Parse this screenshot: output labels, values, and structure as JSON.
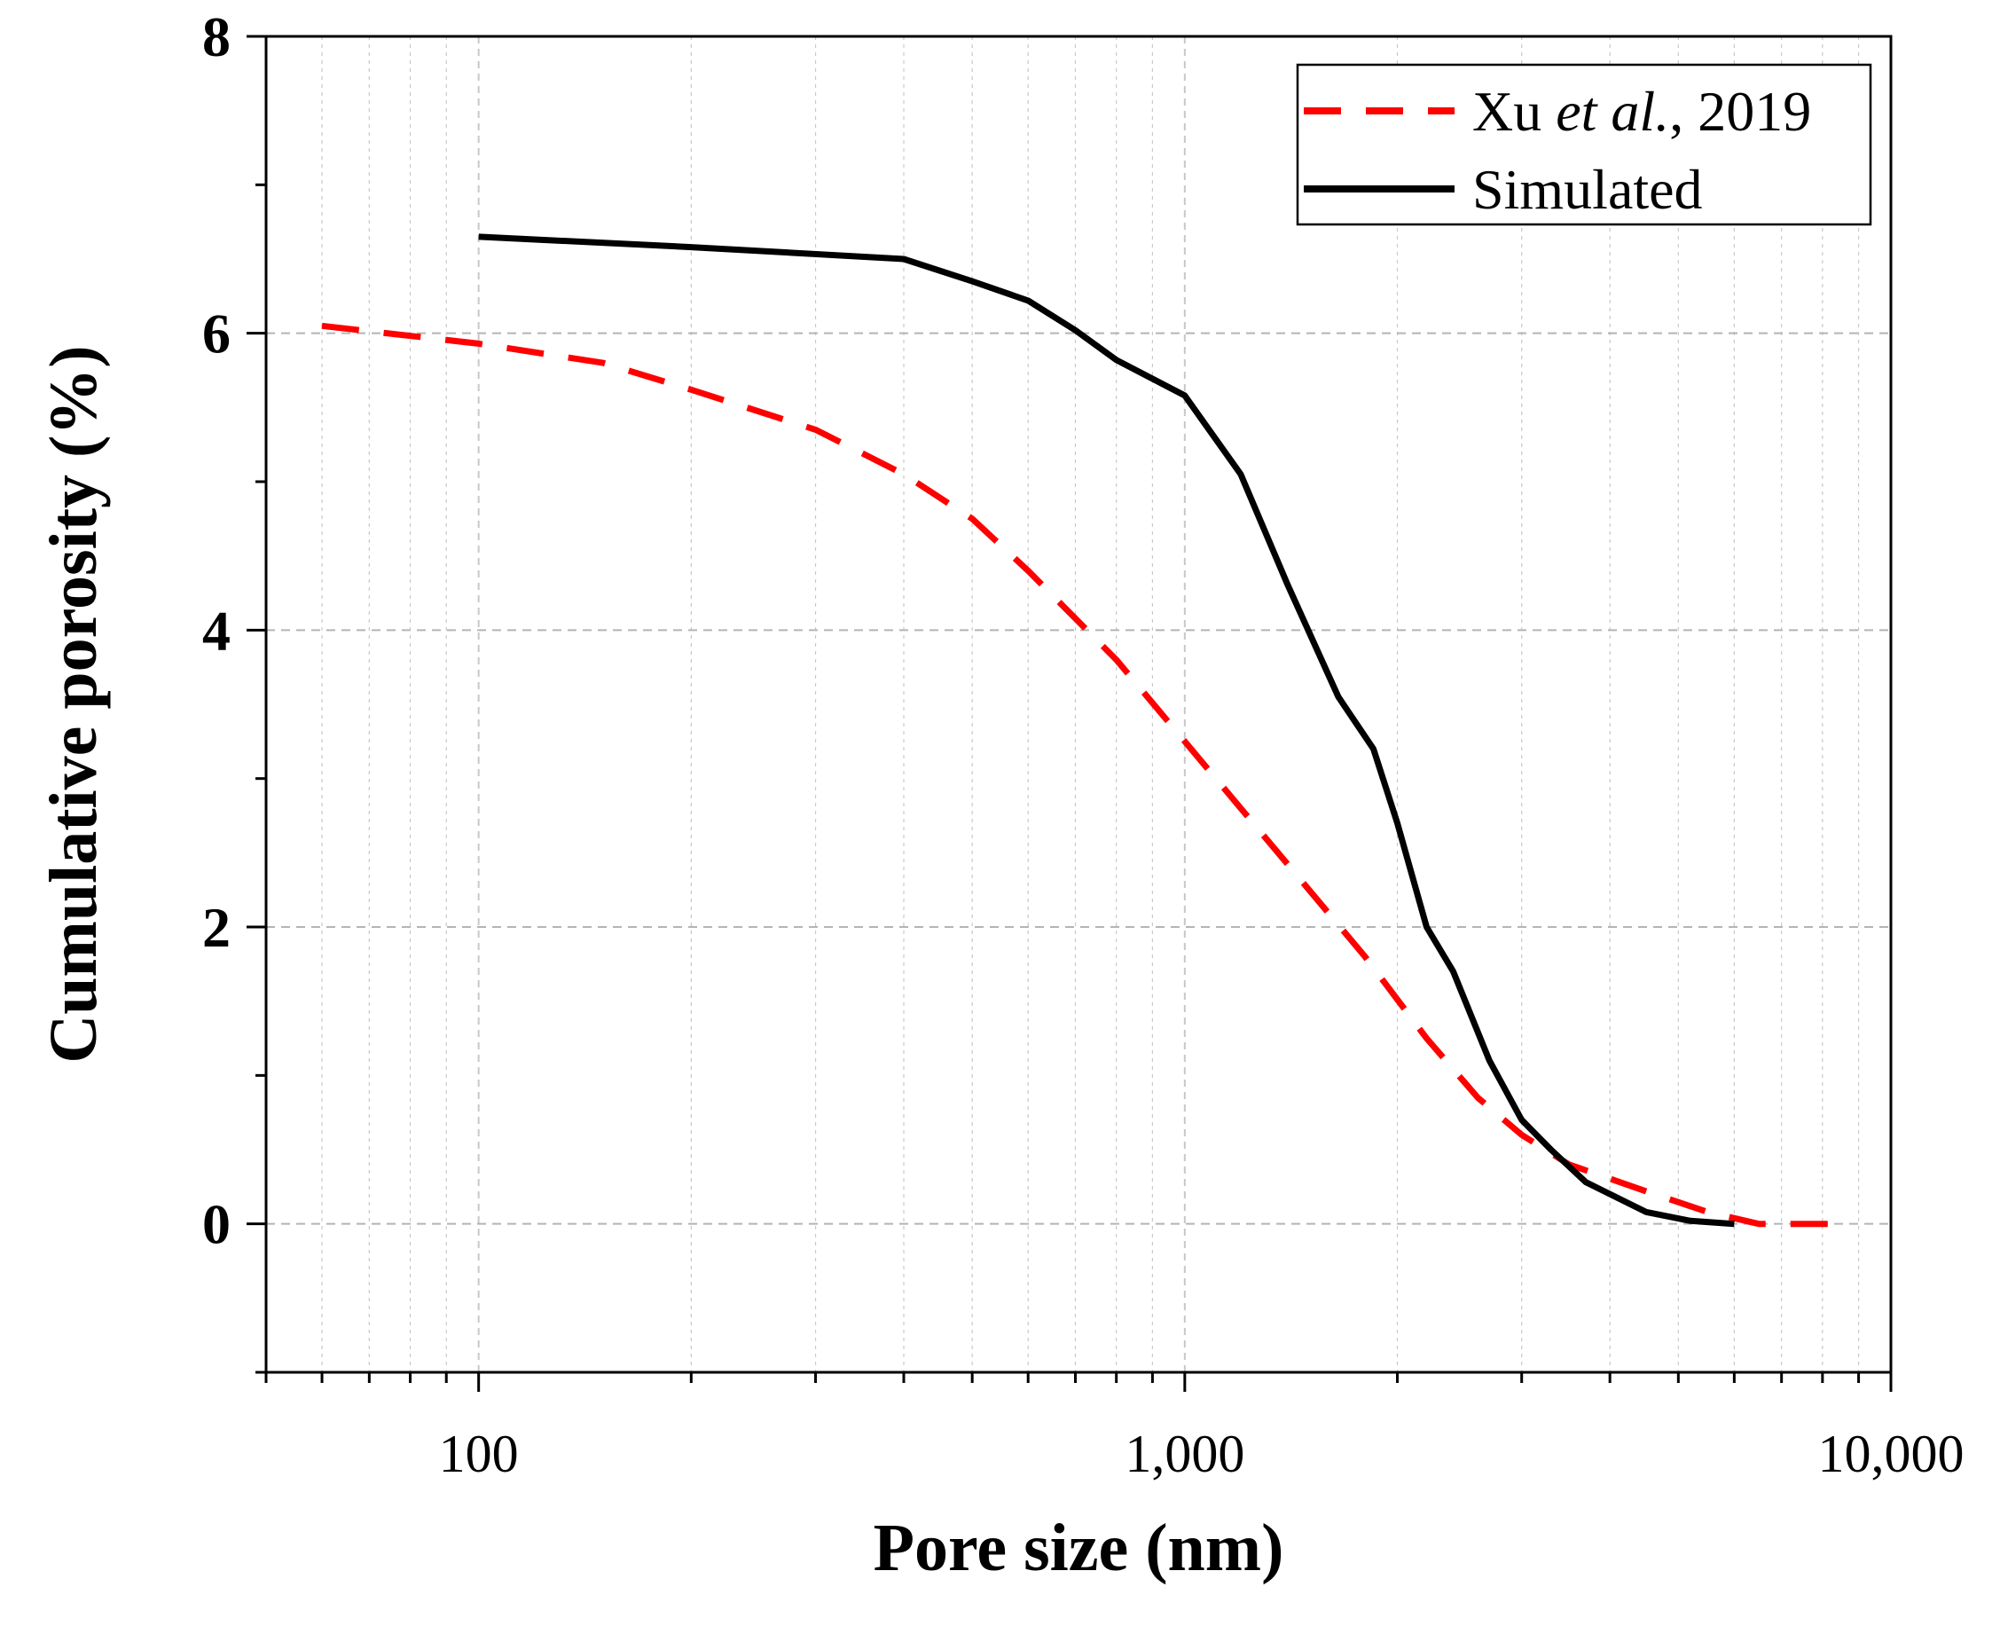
{
  "chart_data": {
    "type": "line",
    "xscale": "log",
    "xlabel": "Pore size (nm)",
    "ylabel": "Cumulative porosity (%)",
    "xlim": [
      50,
      10000
    ],
    "ylim": [
      -1,
      8
    ],
    "x_ticks": [
      {
        "value": 100,
        "label": "100"
      },
      {
        "value": 1000,
        "label": "1,000"
      },
      {
        "value": 10000,
        "label": "10,000"
      }
    ],
    "y_ticks": [
      {
        "value": 0,
        "label": "0"
      },
      {
        "value": 2,
        "label": "2"
      },
      {
        "value": 4,
        "label": "4"
      },
      {
        "value": 6,
        "label": "6"
      },
      {
        "value": 8,
        "label": "8"
      }
    ],
    "grid": true,
    "legend_position": "top-right",
    "series": [
      {
        "name": "Xu et al., 2019",
        "label_parts": {
          "before": "Xu ",
          "italic": "et al.",
          "after": ", 2019"
        },
        "color": "#ff0000",
        "style": "dashed",
        "points": [
          [
            60,
            6.05
          ],
          [
            100,
            5.93
          ],
          [
            150,
            5.8
          ],
          [
            200,
            5.62
          ],
          [
            300,
            5.35
          ],
          [
            400,
            5.05
          ],
          [
            500,
            4.75
          ],
          [
            600,
            4.4
          ],
          [
            800,
            3.8
          ],
          [
            1000,
            3.25
          ],
          [
            1200,
            2.8
          ],
          [
            1500,
            2.25
          ],
          [
            1800,
            1.8
          ],
          [
            2200,
            1.25
          ],
          [
            2600,
            0.85
          ],
          [
            3000,
            0.6
          ],
          [
            3500,
            0.4
          ],
          [
            4500,
            0.22
          ],
          [
            5500,
            0.08
          ],
          [
            6500,
            0.0
          ],
          [
            8500,
            0.0
          ]
        ]
      },
      {
        "name": "Simulated",
        "color": "#000000",
        "style": "solid",
        "points": [
          [
            100,
            6.65
          ],
          [
            200,
            6.58
          ],
          [
            400,
            6.5
          ],
          [
            500,
            6.35
          ],
          [
            600,
            6.22
          ],
          [
            700,
            6.02
          ],
          [
            800,
            5.82
          ],
          [
            1000,
            5.58
          ],
          [
            1200,
            5.05
          ],
          [
            1400,
            4.3
          ],
          [
            1650,
            3.55
          ],
          [
            1850,
            3.2
          ],
          [
            2000,
            2.7
          ],
          [
            2200,
            2.0
          ],
          [
            2400,
            1.7
          ],
          [
            2700,
            1.1
          ],
          [
            3000,
            0.7
          ],
          [
            3300,
            0.5
          ],
          [
            3700,
            0.28
          ],
          [
            4500,
            0.08
          ],
          [
            5200,
            0.02
          ],
          [
            6000,
            0.0
          ]
        ]
      }
    ]
  }
}
